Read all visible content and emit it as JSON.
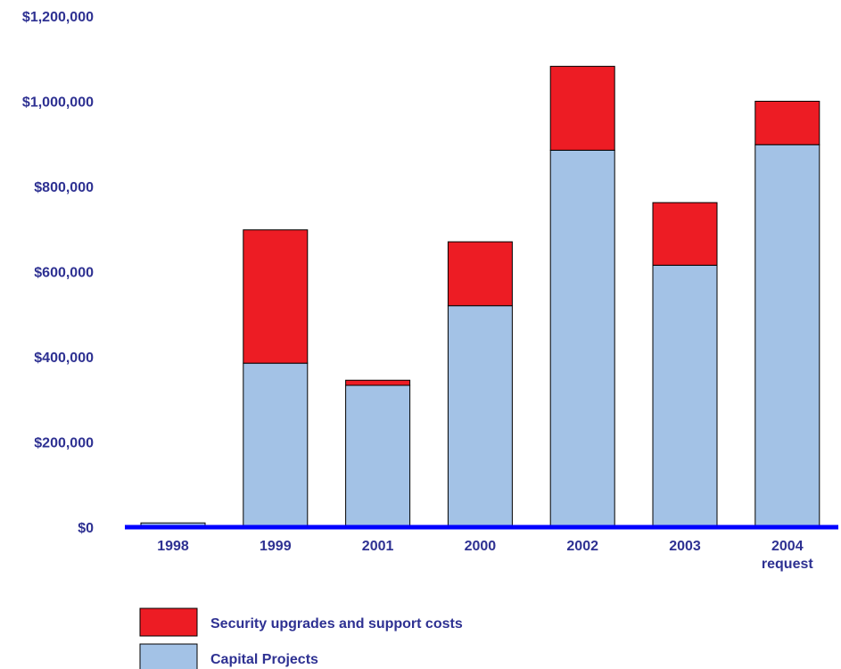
{
  "chart_data": {
    "type": "bar",
    "stacked": true,
    "categories": [
      [
        "1998"
      ],
      [
        "1999"
      ],
      [
        "2001"
      ],
      [
        "2000"
      ],
      [
        "2002"
      ],
      [
        "2003"
      ],
      [
        "2004",
        "request"
      ]
    ],
    "series": [
      {
        "name": "Capital Projects",
        "color": "#a3c2e6",
        "values": [
          10000,
          385000,
          333000,
          520000,
          885000,
          615000,
          898000
        ]
      },
      {
        "name": "Security upgrades and support costs",
        "color": "#ed1c24",
        "values": [
          0,
          313000,
          12000,
          150000,
          197000,
          147000,
          102000
        ]
      }
    ],
    "yticks": [
      "$0",
      "$200,000",
      "$400,000",
      "$600,000",
      "$800,000",
      "$1,000,000",
      "$1,200,000"
    ],
    "ylim": [
      0,
      1200000
    ],
    "grid": false,
    "legend_position": "bottom-left",
    "axis_color": "#0000ff",
    "text_color": "#2e3192"
  }
}
